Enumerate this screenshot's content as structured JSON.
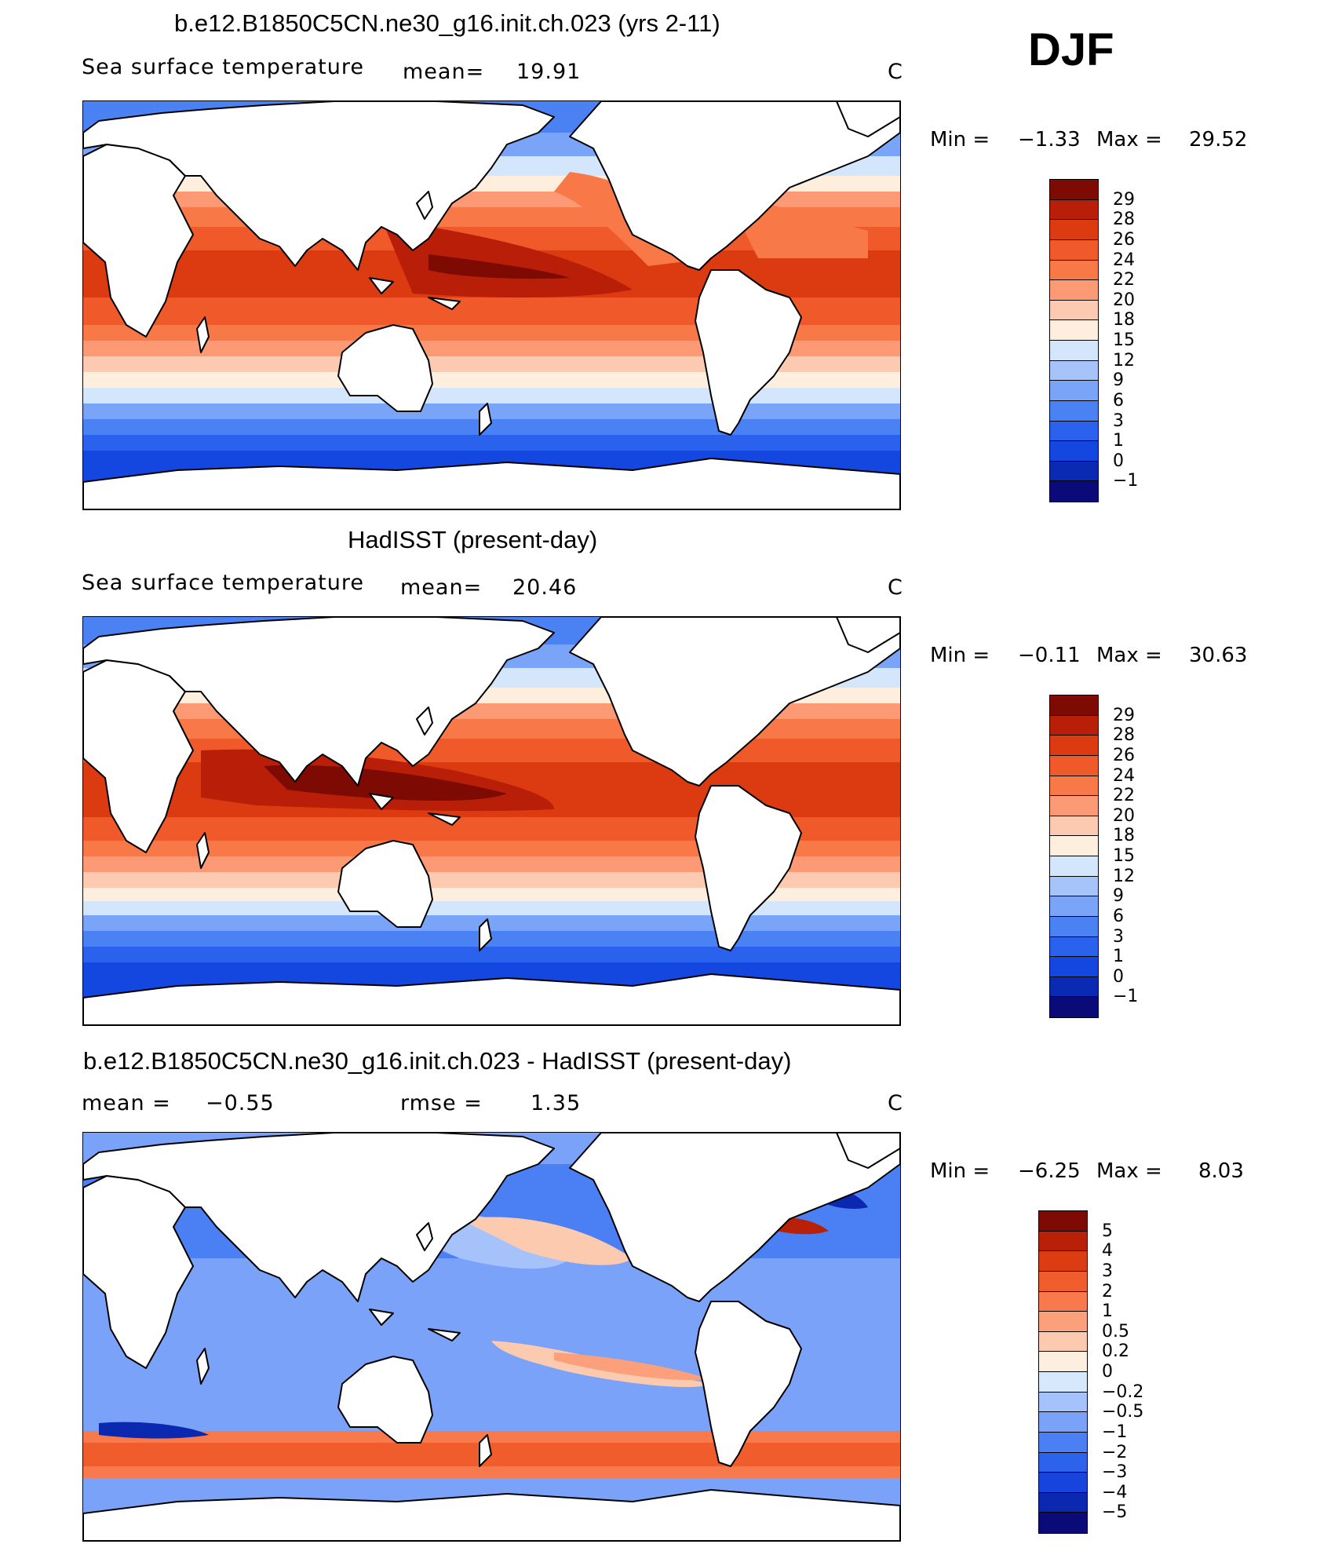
{
  "season": "DJF",
  "panels": [
    {
      "title": "b.e12.B1850C5CN.ne30_g16.init.ch.023 (yrs 2-11)",
      "left_label": "Sea surface temperature",
      "mean_label": "mean=",
      "mean_value": "19.91",
      "units": "C",
      "min_label": "Min =",
      "min_value": "−1.33",
      "max_label": "Max =",
      "max_value": "29.52",
      "colorbar_levels": [
        "29",
        "28",
        "26",
        "24",
        "22",
        "20",
        "18",
        "15",
        "12",
        "9",
        "6",
        "3",
        "1",
        "0",
        "−1"
      ]
    },
    {
      "title": "HadISST (present-day)",
      "left_label": "Sea surface temperature",
      "mean_label": "mean=",
      "mean_value": "20.46",
      "units": "C",
      "min_label": "Min =",
      "min_value": "−0.11",
      "max_label": "Max =",
      "max_value": "30.63",
      "colorbar_levels": [
        "29",
        "28",
        "26",
        "24",
        "22",
        "20",
        "18",
        "15",
        "12",
        "9",
        "6",
        "3",
        "1",
        "0",
        "−1"
      ]
    },
    {
      "title": "b.e12.B1850C5CN.ne30_g16.init.ch.023 - HadISST (present-day)",
      "left_label": "mean =",
      "left_value": "−0.55",
      "rmse_label": "rmse =",
      "rmse_value": "1.35",
      "units": "C",
      "min_label": "Min =",
      "min_value": "−6.25",
      "max_label": "Max =",
      "max_value": "8.03",
      "colorbar_levels": [
        "5",
        "4",
        "3",
        "2",
        "1",
        "0.5",
        "0.2",
        "0",
        "−0.2",
        "−0.5",
        "−1",
        "−2",
        "−3",
        "−4",
        "−5"
      ]
    }
  ],
  "colors": {
    "abs_palette": [
      "#0a0a78",
      "#0a2ab4",
      "#1446e0",
      "#2a62ee",
      "#4a82f4",
      "#7aa4f8",
      "#a6c4fa",
      "#d4e6fb",
      "#fdeedd",
      "#fccab0",
      "#fb9a74",
      "#f87848",
      "#f05a2a",
      "#dc3a10",
      "#b81e08",
      "#7e0a04"
    ],
    "diff_palette": [
      "#0a0a78",
      "#0a28b0",
      "#1644dc",
      "#2c62ec",
      "#4a80f4",
      "#7aa2f8",
      "#a6c2fa",
      "#d6e8fb",
      "#fdefe0",
      "#fccaae",
      "#fba07a",
      "#f87a4c",
      "#f05c2c",
      "#dc3c12",
      "#b82008",
      "#7e0a04"
    ],
    "land": "#ffffff",
    "coast": "#000000"
  },
  "chart_data": [
    {
      "type": "heatmap",
      "title": "b.e12.B1850C5CN.ne30_g16.init.ch.023 (yrs 2-11)",
      "variable": "Sea surface temperature",
      "units": "C",
      "mean": 19.91,
      "min": -1.33,
      "max": 29.52,
      "contour_levels": [
        -1,
        0,
        1,
        3,
        6,
        9,
        12,
        15,
        18,
        20,
        22,
        24,
        26,
        28,
        29
      ]
    },
    {
      "type": "heatmap",
      "title": "HadISST (present-day)",
      "variable": "Sea surface temperature",
      "units": "C",
      "mean": 20.46,
      "min": -0.11,
      "max": 30.63,
      "contour_levels": [
        -1,
        0,
        1,
        3,
        6,
        9,
        12,
        15,
        18,
        20,
        22,
        24,
        26,
        28,
        29
      ]
    },
    {
      "type": "heatmap",
      "title": "b.e12.B1850C5CN.ne30_g16.init.ch.023 - HadISST (present-day)",
      "units": "C",
      "mean": -0.55,
      "rmse": 1.35,
      "min": -6.25,
      "max": 8.03,
      "contour_levels": [
        -5,
        -4,
        -3,
        -2,
        -1,
        -0.5,
        -0.2,
        0,
        0.2,
        0.5,
        1,
        2,
        3,
        4,
        5
      ]
    }
  ]
}
